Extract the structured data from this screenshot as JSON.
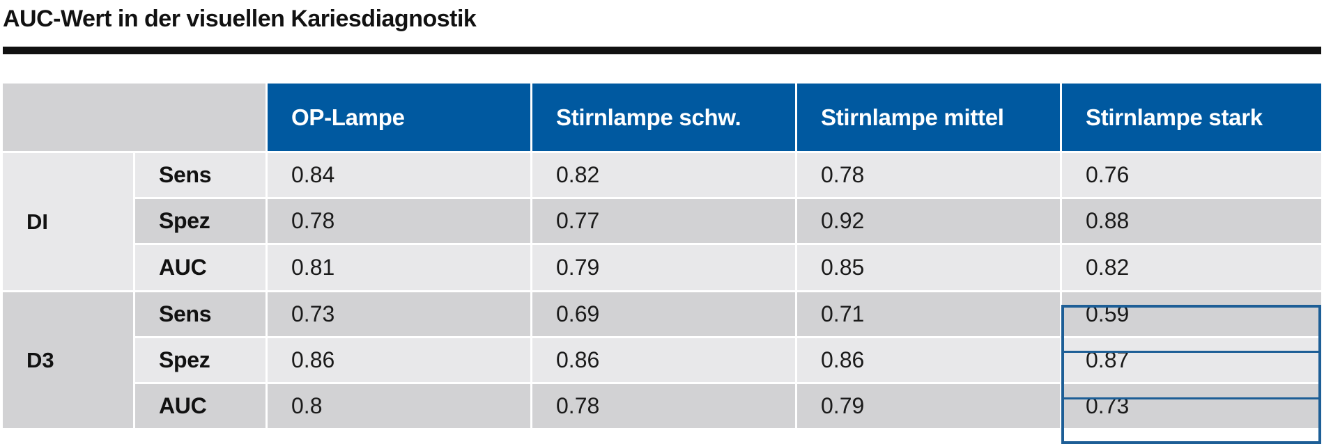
{
  "title": "AUC-Wert in der visuellen Kariesdiagnostik",
  "columns": [
    "OP-Lampe",
    "Stirnlampe schw.",
    "Stirnlampe mittel",
    "Stirnlampe stark"
  ],
  "groups": [
    {
      "label": "DI",
      "rows": [
        {
          "metric": "Sens",
          "values": [
            "0.84",
            "0.82",
            "0.78",
            "0.76"
          ]
        },
        {
          "metric": "Spez",
          "values": [
            "0.78",
            "0.77",
            "0.92",
            "0.88"
          ]
        },
        {
          "metric": "AUC",
          "values": [
            "0.81",
            "0.79",
            "0.85",
            "0.82"
          ]
        }
      ]
    },
    {
      "label": "D3",
      "rows": [
        {
          "metric": "Sens",
          "values": [
            "0.73",
            "0.69",
            "0.71",
            "0.59"
          ]
        },
        {
          "metric": "Spez",
          "values": [
            "0.86",
            "0.86",
            "0.86",
            "0.87"
          ]
        },
        {
          "metric": "AUC",
          "values": [
            "0.8",
            "0.78",
            "0.79",
            "0.73"
          ]
        }
      ]
    }
  ],
  "colors": {
    "header_blue": "#0059a0",
    "row_light": "#e8e8ea",
    "row_dark": "#d2d2d4",
    "highlight_border": "#1d5e96",
    "title_rule": "#111111"
  }
}
